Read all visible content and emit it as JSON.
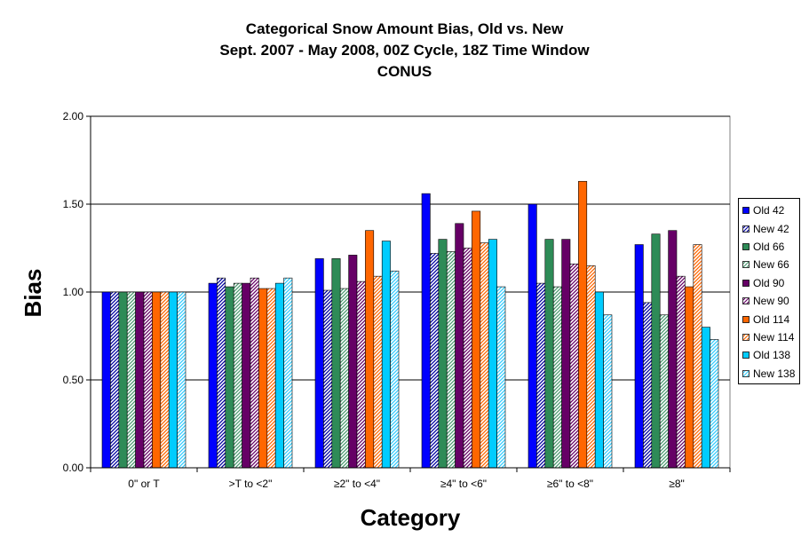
{
  "chart_data": {
    "type": "bar",
    "title": "Categorical Snow Amount Bias, Old vs. New",
    "subtitle": "Sept. 2007 - May 2008, 00Z Cycle, 18Z Time Window",
    "subtitle2": "CONUS",
    "xlabel": "Category",
    "ylabel": "Bias",
    "ylim": [
      0,
      2.0
    ],
    "yticks": [
      "0.00",
      "0.50",
      "1.00",
      "1.50",
      "2.00"
    ],
    "grid": true,
    "legend_position": "right",
    "categories": [
      "0\" or T",
      ">T to <2\"",
      "≥2\" to <4\"",
      "≥4\" to <6\"",
      "≥6\" to <8\"",
      "≥8\""
    ],
    "series": [
      {
        "name": "Old 42",
        "color": "#0000ff",
        "hatched": false,
        "values": [
          1.0,
          1.05,
          1.19,
          1.56,
          1.5,
          1.27
        ]
      },
      {
        "name": "New 42",
        "color": "#0000a0",
        "hatched": true,
        "values": [
          1.0,
          1.08,
          1.01,
          1.22,
          1.05,
          0.94
        ]
      },
      {
        "name": "Old 66",
        "color": "#2e8b57",
        "hatched": false,
        "values": [
          1.0,
          1.03,
          1.19,
          1.3,
          1.3,
          1.33
        ]
      },
      {
        "name": "New 66",
        "color": "#4a9a70",
        "hatched": true,
        "values": [
          1.0,
          1.05,
          1.02,
          1.23,
          1.03,
          0.87
        ]
      },
      {
        "name": "Old 90",
        "color": "#660066",
        "hatched": false,
        "values": [
          1.0,
          1.05,
          1.21,
          1.39,
          1.3,
          1.35
        ]
      },
      {
        "name": "New 90",
        "color": "#660066",
        "hatched": true,
        "values": [
          1.0,
          1.08,
          1.06,
          1.25,
          1.16,
          1.09
        ]
      },
      {
        "name": "Old 114",
        "color": "#ff6600",
        "hatched": false,
        "values": [
          1.0,
          1.02,
          1.35,
          1.46,
          1.63,
          1.03
        ]
      },
      {
        "name": "New 114",
        "color": "#ff6600",
        "hatched": true,
        "values": [
          1.0,
          1.02,
          1.09,
          1.28,
          1.15,
          1.27
        ]
      },
      {
        "name": "Old 138",
        "color": "#00ccff",
        "hatched": false,
        "values": [
          1.0,
          1.05,
          1.29,
          1.3,
          1.0,
          0.8
        ]
      },
      {
        "name": "New 138",
        "color": "#33ccff",
        "hatched": true,
        "values": [
          1.0,
          1.08,
          1.12,
          1.03,
          0.87,
          0.73
        ]
      }
    ]
  }
}
